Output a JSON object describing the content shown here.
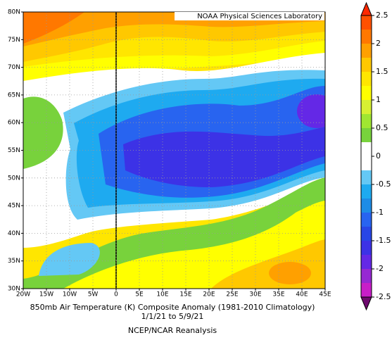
{
  "map": {
    "credit": "NOAA Physical Sciences Laboratory",
    "title": "850mb Air Temperature (K) Composite Anomaly (1981-2010 Climatology)",
    "dates": "1/1/21  to 5/9/21",
    "source": "NCEP/NCAR Reanalysis",
    "lon_labels": [
      "20W",
      "15W",
      "10W",
      "5W",
      "0",
      "5E",
      "10E",
      "15E",
      "20E",
      "25E",
      "30E",
      "35E",
      "40E",
      "45E"
    ],
    "lat_labels": [
      "30N",
      "35N",
      "40N",
      "45N",
      "50N",
      "55N",
      "60N",
      "65N",
      "70N",
      "75N",
      "80N"
    ]
  },
  "colorbar": {
    "range": [
      -2.5,
      2.5
    ],
    "ticks": [
      2.5,
      2,
      1.5,
      1,
      0.5,
      0,
      -0.5,
      -1,
      -1.5,
      -2,
      -2.5
    ],
    "colors": [
      "#6e0a6e",
      "#c81ec8",
      "#9628d2",
      "#6428e6",
      "#3c32e6",
      "#2846e6",
      "#2864f0",
      "#1e8ce6",
      "#1eaaf0",
      "#64c8f5",
      "#ffffff",
      "#ffffff",
      "#78d23c",
      "#a0e632",
      "#d7f032",
      "#ffff00",
      "#ffe600",
      "#ffc800",
      "#ffa000",
      "#ff7800",
      "#ff5000",
      "#ff2800"
    ]
  }
}
